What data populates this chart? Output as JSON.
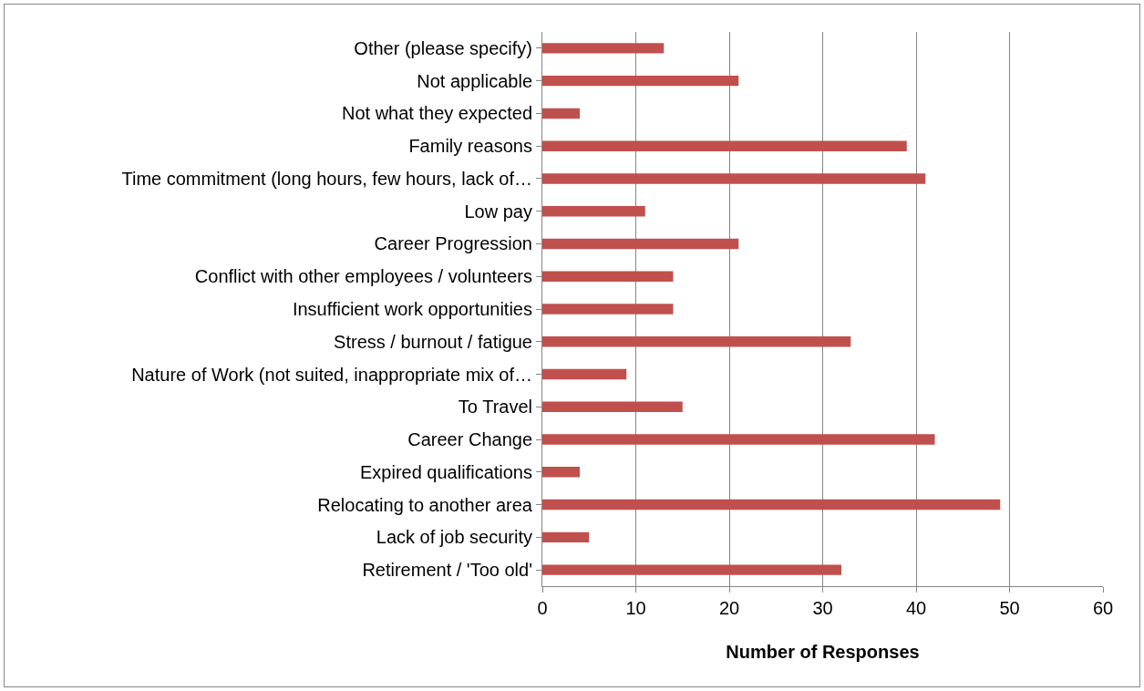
{
  "chart_data": {
    "type": "bar",
    "orientation": "horizontal",
    "xlabel": "Number of Responses",
    "categories": [
      "Other (please specify)",
      "Not applicable",
      "Not what they expected",
      "Family reasons",
      "Time commitment (long hours, few hours, lack of…",
      "Low pay",
      "Career Progression",
      "Conflict with other employees / volunteers",
      "Insufficient work opportunities",
      "Stress / burnout / fatigue",
      "Nature of Work (not suited, inappropriate mix of…",
      "To Travel",
      "Career Change",
      "Expired qualifications",
      "Relocating to another area",
      "Lack of job security",
      "Retirement / 'Too old'"
    ],
    "values": [
      13,
      21,
      4,
      39,
      41,
      11,
      21,
      14,
      14,
      33,
      9,
      15,
      42,
      4,
      49,
      5,
      32
    ],
    "color": "#c0504d",
    "xlim": [
      0,
      60
    ],
    "xticks": [
      0,
      10,
      20,
      30,
      40,
      50,
      60
    ],
    "grid": "x"
  }
}
